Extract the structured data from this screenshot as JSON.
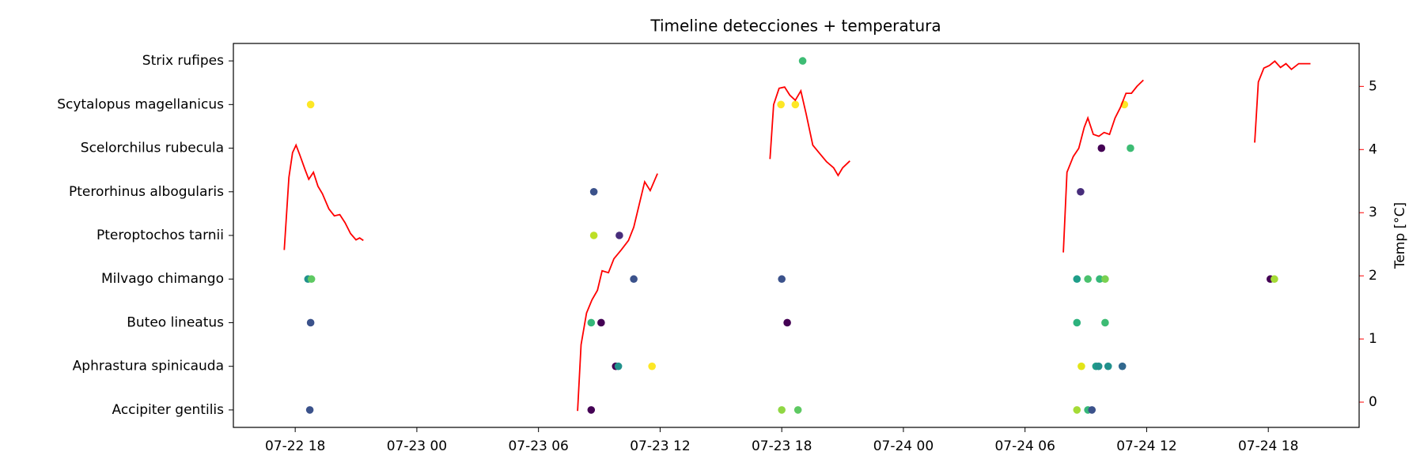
{
  "chart_data": {
    "type": "scatter",
    "title": "Timeline detecciones + temperatura",
    "xlim": [
      14.95,
      70.48
    ],
    "xticks": [
      {
        "value": 18,
        "label": "07-22 18"
      },
      {
        "value": 24,
        "label": "07-23 00"
      },
      {
        "value": 30,
        "label": "07-23 06"
      },
      {
        "value": 36,
        "label": "07-23 12"
      },
      {
        "value": 42,
        "label": "07-23 18"
      },
      {
        "value": 48,
        "label": "07-24 00"
      },
      {
        "value": 54,
        "label": "07-24 06"
      },
      {
        "value": 60,
        "label": "07-24 12"
      },
      {
        "value": 66,
        "label": "07-24 18"
      }
    ],
    "series": [
      {
        "name": "Accipiter gentilis",
        "x": [
          18.72,
          32.6,
          42.0,
          42.8,
          56.56,
          57.1,
          57.3
        ],
        "colors": [
          "#3b528b",
          "#440154",
          "#90d743",
          "#5ec962",
          "#a5db36",
          "#35b779",
          "#3b528b"
        ]
      },
      {
        "name": "Aphrastura spinicauda",
        "x": [
          33.81,
          33.94,
          35.6,
          56.78,
          57.5,
          57.63,
          58.1,
          58.8
        ],
        "colors": [
          "#440154",
          "#21918c",
          "#fde725",
          "#e2e418",
          "#1f9e89",
          "#21918c",
          "#21918c",
          "#31688e"
        ]
      },
      {
        "name": "Buteo lineatus",
        "x": [
          18.76,
          32.6,
          33.09,
          42.27,
          56.56,
          57.95
        ],
        "colors": [
          "#3b528b",
          "#35b779",
          "#440154",
          "#440154",
          "#2db27d",
          "#3dbc74"
        ]
      },
      {
        "name": "Milvago chimango",
        "x": [
          18.63,
          18.8,
          34.7,
          42.0,
          56.56,
          57.1,
          57.68,
          57.95,
          66.1,
          66.3
        ],
        "colors": [
          "#21918c",
          "#5ec962",
          "#3b528b",
          "#3b528b",
          "#1f9e89",
          "#4ac16d",
          "#35b779",
          "#7ad151",
          "#440154",
          "#a5db36"
        ]
      },
      {
        "name": "Pteroptochos tarnii",
        "x": [
          32.73,
          33.99
        ],
        "colors": [
          "#bddf26",
          "#472d7b"
        ]
      },
      {
        "name": "Pterorhinus albogularis",
        "x": [
          32.73,
          56.74
        ],
        "colors": [
          "#3b528b",
          "#472d7b"
        ]
      },
      {
        "name": "Scelorchilus rubecula",
        "x": [
          57.77,
          59.2
        ],
        "colors": [
          "#440154",
          "#3dbc74"
        ]
      },
      {
        "name": "Scytalopus magellanicus",
        "x": [
          18.76,
          41.96,
          42.67,
          58.9
        ],
        "colors": [
          "#fde725",
          "#fde725",
          "#fde725",
          "#fde725"
        ]
      },
      {
        "name": "Strix rufipes",
        "x": [
          43.03
        ],
        "colors": [
          "#3dbc74"
        ]
      }
    ],
    "temperature": {
      "axis": "y2",
      "color": "#ff0000",
      "x": [
        17.46,
        17.69,
        17.87,
        18.04,
        18.22,
        18.49,
        18.67,
        18.9,
        19.12,
        19.34,
        19.66,
        19.93,
        20.2,
        20.46,
        20.73,
        21.0,
        21.18,
        21.36,
        null,
        31.93,
        32.1,
        32.37,
        32.64,
        32.91,
        33.14,
        33.45,
        33.72,
        34.08,
        34.44,
        34.7,
        34.97,
        35.24,
        35.51,
        35.87,
        null,
        41.42,
        41.6,
        41.87,
        42.14,
        42.4,
        42.67,
        42.94,
        43.2,
        43.53,
        43.84,
        44.2,
        44.56,
        44.78,
        45.0,
        45.36,
        null,
        55.89,
        56.07,
        56.38,
        56.65,
        56.92,
        57.1,
        57.37,
        57.64,
        57.9,
        58.17,
        58.44,
        58.71,
        58.98,
        59.25,
        59.52,
        59.84,
        null,
        65.33,
        65.51,
        65.78,
        66.05,
        66.32,
        66.6,
        66.87,
        67.14,
        67.5,
        67.76,
        68.08
      ],
      "values": [
        2.41,
        3.56,
        3.95,
        4.07,
        3.92,
        3.68,
        3.53,
        3.64,
        3.42,
        3.3,
        3.06,
        2.95,
        2.97,
        2.84,
        2.67,
        2.57,
        2.6,
        2.56,
        null,
        -0.14,
        0.91,
        1.41,
        1.62,
        1.77,
        2.08,
        2.05,
        2.27,
        2.41,
        2.56,
        2.77,
        3.13,
        3.49,
        3.35,
        3.62,
        null,
        3.85,
        4.71,
        4.97,
        4.99,
        4.86,
        4.78,
        4.93,
        4.57,
        4.07,
        3.95,
        3.81,
        3.71,
        3.59,
        3.71,
        3.82,
        null,
        2.37,
        3.64,
        3.89,
        4.02,
        4.35,
        4.5,
        4.24,
        4.21,
        4.27,
        4.24,
        4.5,
        4.67,
        4.89,
        4.89,
        5.0,
        5.1,
        null,
        4.11,
        5.07,
        5.29,
        5.33,
        5.4,
        5.3,
        5.36,
        5.27,
        5.36,
        5.36,
        5.36
      ]
    },
    "y2lim": [
      -0.4,
      5.68
    ],
    "y2ticks": [
      0,
      1,
      2,
      3,
      4,
      5
    ],
    "y2label": "Temp [°C]"
  }
}
